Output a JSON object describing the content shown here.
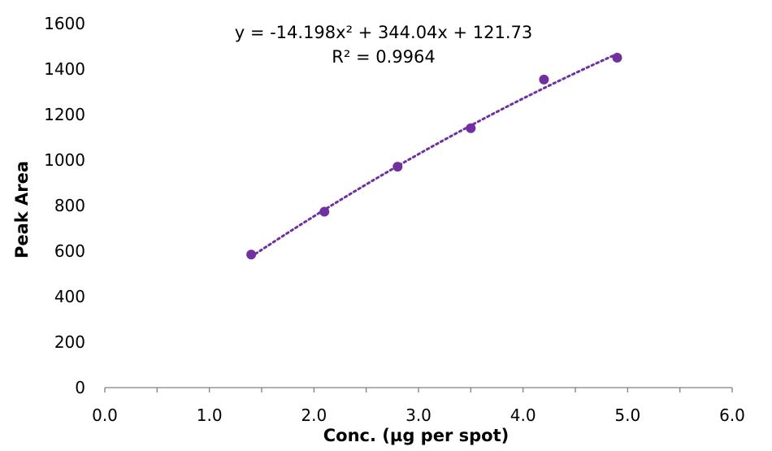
{
  "chart_data": {
    "type": "scatter",
    "xlabel": "Conc. (µg per spot)",
    "ylabel": "Peak Area",
    "xlim": [
      0,
      6
    ],
    "ylim": [
      0,
      1600
    ],
    "x_ticks": [
      "0.0",
      "1.0",
      "2.0",
      "3.0",
      "4.0",
      "5.0",
      "6.0"
    ],
    "y_ticks": [
      "0",
      "200",
      "400",
      "600",
      "800",
      "1000",
      "1200",
      "1400",
      "1600"
    ],
    "grid": false,
    "legend": "none",
    "series": [
      {
        "color": "#7030a0",
        "marker": "circle",
        "x": [
          1.4,
          2.1,
          2.8,
          3.5,
          4.2,
          4.9
        ],
        "y": [
          585,
          773,
          971,
          1140,
          1354,
          1450
        ]
      }
    ],
    "trendline": {
      "type": "polynomial",
      "order": 2,
      "style": "dotted",
      "color": "#7030a0",
      "coefficients": [
        -14.198,
        344.04,
        121.73
      ],
      "x_range": [
        1.4,
        4.9
      ]
    },
    "annotations": {
      "equation": "y = -14.198x² + 344.04x + 121.73",
      "r_squared": "R² = 0.9964"
    }
  }
}
